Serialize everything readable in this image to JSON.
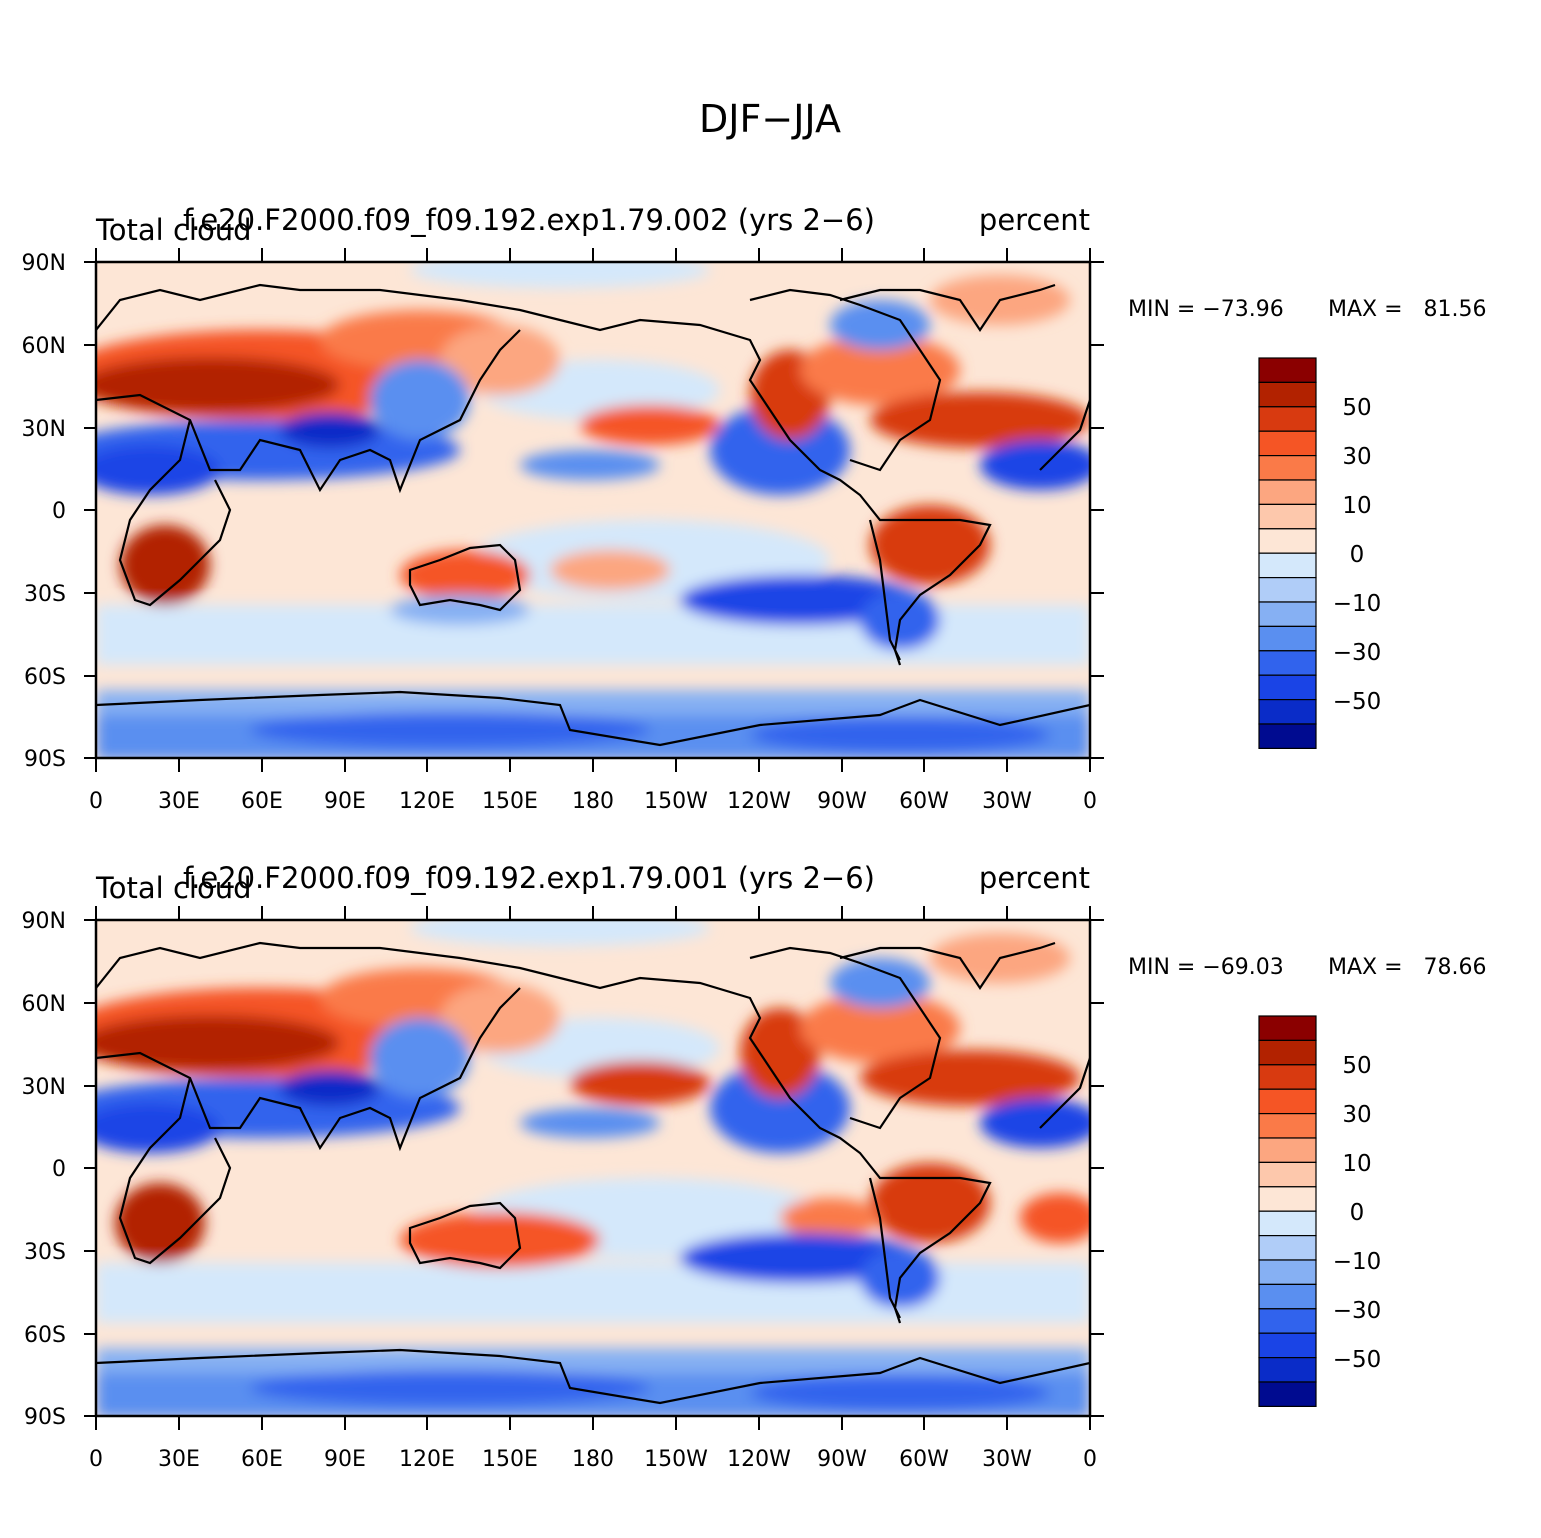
{
  "figure": {
    "main_title": "DJF−JJA"
  },
  "panels": [
    {
      "left_title": "Total cloud",
      "center_title": "f.e20.F2000.f09_f09.192.exp1.79.002 (yrs 2−6)",
      "right_title": "percent",
      "min_label": "MIN = −73.96",
      "max_label": "MAX =   81.56"
    },
    {
      "left_title": "Total cloud",
      "center_title": "f.e20.F2000.f09_f09.192.exp1.79.001 (yrs 2−6)",
      "right_title": "percent",
      "min_label": "MIN = −69.03",
      "max_label": "MAX =   78.66"
    }
  ],
  "axes": {
    "lat_labels": [
      "90N",
      "60N",
      "30N",
      "0",
      "30S",
      "60S",
      "90S"
    ],
    "lon_labels": [
      "0",
      "30E",
      "60E",
      "90E",
      "120E",
      "150E",
      "180",
      "150W",
      "120W",
      "90W",
      "60W",
      "30W",
      "0"
    ]
  },
  "colorbar": {
    "labels": [
      "50",
      "30",
      "10",
      "0",
      "−10",
      "−30",
      "−50"
    ],
    "colors_top_to_bottom": [
      "#8b0000",
      "#b22200",
      "#d83a10",
      "#f55525",
      "#fa7a48",
      "#fca680",
      "#fdc8ac",
      "#fde6d6",
      "#d4e8fb",
      "#b0cdf8",
      "#86b0f3",
      "#5a8ff0",
      "#3163ed",
      "#1a44e6",
      "#0a2cc8",
      "#000b90"
    ]
  },
  "map_colors": {
    "ocean_bg": "#fde6d6",
    "coast": "#000000"
  }
}
